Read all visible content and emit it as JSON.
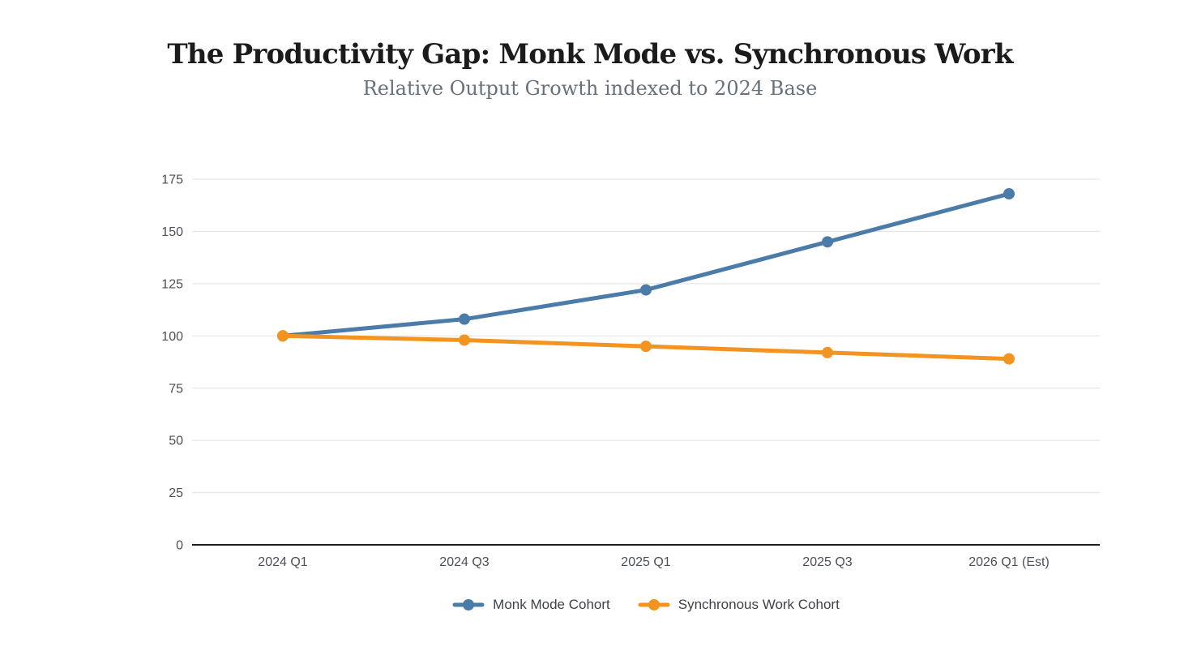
{
  "header": {
    "title": "The Productivity Gap: Monk Mode vs. Synchronous Work",
    "subtitle": "Relative Output Growth indexed to 2024 Base"
  },
  "chart_data": {
    "type": "line",
    "title": "The Productivity Gap: Monk Mode vs. Synchronous Work",
    "subtitle": "Relative Output Growth indexed to 2024 Base",
    "categories": [
      "2024 Q1",
      "2024 Q3",
      "2025 Q1",
      "2025 Q3",
      "2026 Q1 (Est)"
    ],
    "series": [
      {
        "name": "Monk Mode Cohort",
        "color": "#4a7ba9",
        "values": [
          100,
          108,
          122,
          145,
          168
        ]
      },
      {
        "name": "Synchronous Work Cohort",
        "color": "#f39320",
        "values": [
          100,
          98,
          95,
          92,
          89
        ]
      }
    ],
    "xlabel": "",
    "ylabel": "",
    "ylim": [
      0,
      175
    ],
    "yticks": [
      0,
      25,
      50,
      75,
      100,
      125,
      150,
      175
    ],
    "grid": true,
    "legend_position": "bottom"
  },
  "colors": {
    "background": "#ffffff",
    "grid": "#e7e7e7",
    "axis_baseline": "#1f1f1f",
    "tick_label": "#4b5057",
    "legend_text": "#3e4247",
    "title_text": "#1b1b1b",
    "subtitle_text": "#67707b"
  }
}
